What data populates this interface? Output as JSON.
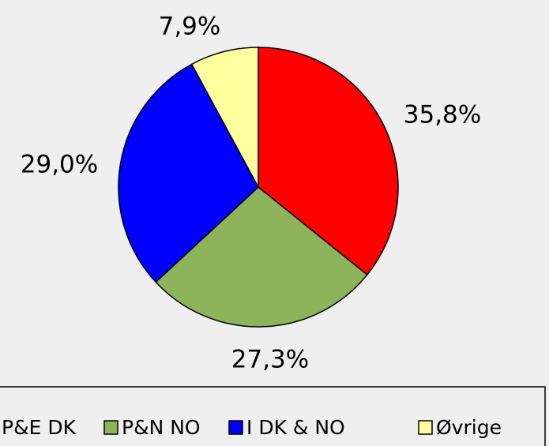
{
  "chart_data": {
    "type": "pie",
    "categories": [
      "P&E DK",
      "P&N NO",
      "I DK & NO",
      "Øvrige"
    ],
    "values": [
      35.8,
      27.3,
      29.0,
      7.9
    ],
    "value_labels": [
      "35,8%",
      "27,3%",
      "29,0%",
      "7,9%"
    ],
    "colors": [
      "#ff0000",
      "#8db35b",
      "#0000ff",
      "#ffffa0"
    ],
    "legend": "bottom"
  }
}
